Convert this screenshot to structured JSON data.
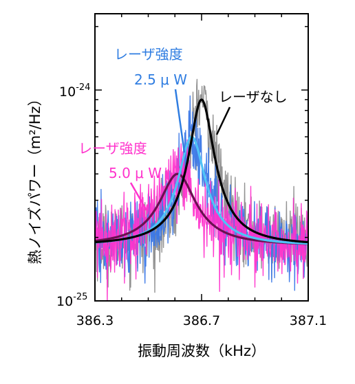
{
  "chart_data": {
    "type": "line",
    "xlabel": "振動周波数（kHz）",
    "ylabel": "熱ノイズパワー（m²/Hz）",
    "xlim": [
      386.3,
      387.1
    ],
    "ylim": [
      1e-25,
      2.3e-24
    ],
    "yscale": "log",
    "grid": false,
    "x_ticks": [
      "386.3",
      "386.7",
      "387.1"
    ],
    "y_ticks": [
      {
        "value": 1e-24,
        "base": "10",
        "exp": "-24"
      },
      {
        "value": 1e-25,
        "base": "10",
        "exp": "-25"
      }
    ],
    "fits": [
      {
        "key": "none",
        "color": "#000000",
        "noise_color": "#8c8c8c",
        "f0": 386.7,
        "peak": 9e-25,
        "base": 1.82e-25,
        "hwhm": 0.042
      },
      {
        "key": "p25",
        "color": "#4fc3f7",
        "noise_color": "#3b78e7",
        "f0": 386.663,
        "peak": 6e-25,
        "base": 1.82e-25,
        "hwhm": 0.048
      },
      {
        "key": "p50",
        "color": "#6a1050",
        "noise_color": "#ff33cc",
        "f0": 386.61,
        "peak": 4e-25,
        "base": 1.82e-25,
        "hwhm": 0.07
      }
    ],
    "annotations": {
      "none": {
        "label": "レーザなし",
        "color": "#000000"
      },
      "p25": {
        "label": "レーザ強度",
        "value": "2.5 μ W",
        "color": "#2f7de1"
      },
      "p50": {
        "label": "レーザ強度",
        "value": "5.0 μ W",
        "color": "#ff33cc"
      }
    }
  }
}
